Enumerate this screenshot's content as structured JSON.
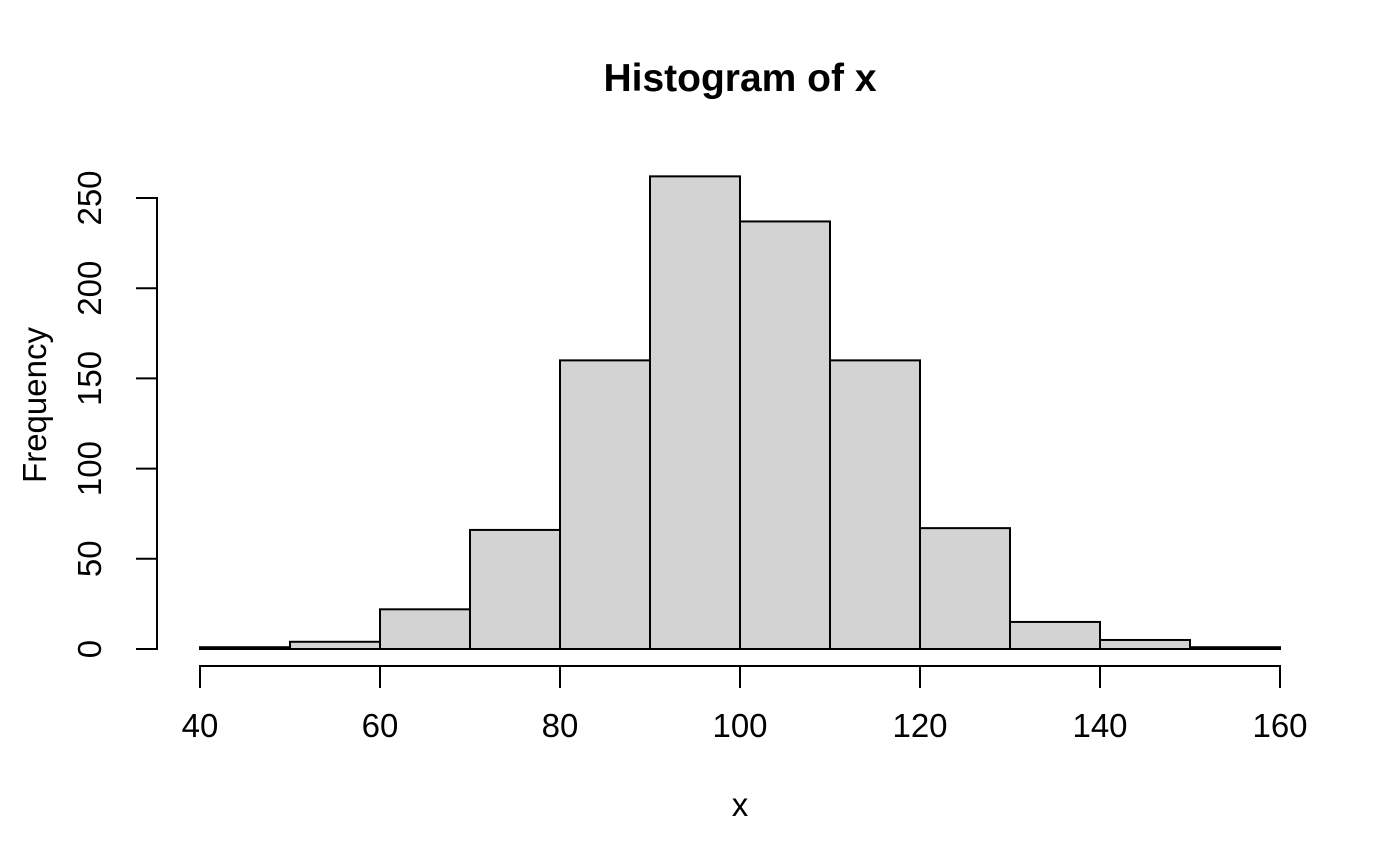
{
  "chart_data": {
    "type": "bar",
    "subtype": "histogram",
    "title": "Histogram of x",
    "xlabel": "x",
    "ylabel": "Frequency",
    "bin_edges": [
      40,
      50,
      60,
      70,
      80,
      90,
      100,
      110,
      120,
      130,
      140,
      150,
      160
    ],
    "counts": [
      1,
      4,
      22,
      66,
      160,
      262,
      237,
      160,
      67,
      15,
      5,
      1
    ],
    "x_ticks": [
      40,
      60,
      80,
      100,
      120,
      140,
      160
    ],
    "y_ticks": [
      0,
      50,
      100,
      150,
      200,
      250
    ],
    "xlim": [
      40,
      160
    ],
    "ylim": [
      0,
      250
    ],
    "grid": false,
    "legend": false,
    "colors": {
      "bar_fill": "#d3d3d3",
      "bar_stroke": "#000000",
      "axis": "#000000",
      "text": "#000000",
      "background": "#ffffff"
    }
  }
}
